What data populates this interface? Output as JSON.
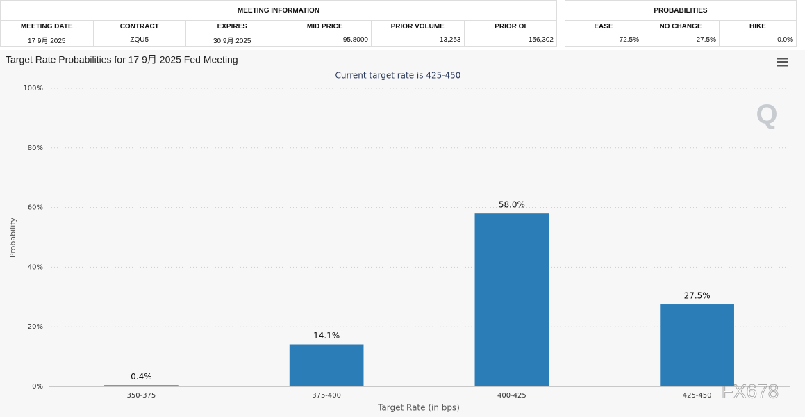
{
  "meeting_information": {
    "title": "MEETING INFORMATION",
    "columns": [
      "MEETING DATE",
      "CONTRACT",
      "EXPIRES",
      "MID PRICE",
      "PRIOR VOLUME",
      "PRIOR OI"
    ],
    "rows": [
      [
        "17 9月 2025",
        "ZQU5",
        "30 9月 2025",
        "95.8000",
        "13,253",
        "156,302"
      ]
    ]
  },
  "probabilities": {
    "title": "PROBABILITIES",
    "columns": [
      "EASE",
      "NO CHANGE",
      "HIKE"
    ],
    "rows": [
      [
        "72.5%",
        "27.5%",
        "0.0%"
      ]
    ]
  },
  "watermark": "FX678",
  "chart_data": {
    "type": "bar",
    "title": "Target Rate Probabilities for 17 9月 2025 Fed Meeting",
    "subtitle": "Current target rate is 425-450",
    "x_label": "Target Rate (in bps)",
    "y_label": "Probability",
    "categories": [
      "350-375",
      "375-400",
      "400-425",
      "425-450"
    ],
    "values": [
      0.4,
      14.1,
      58.0,
      27.5
    ],
    "value_labels": [
      "0.4%",
      "14.1%",
      "58.0%",
      "27.5%"
    ],
    "color": "#2b7db8",
    "ylim": [
      0,
      100
    ],
    "yticks": [
      {
        "value": 0,
        "label": "0%"
      },
      {
        "value": 20,
        "label": "20%"
      },
      {
        "value": 40,
        "label": "40%"
      },
      {
        "value": 60,
        "label": "60%"
      },
      {
        "value": 80,
        "label": "80%"
      },
      {
        "value": 100,
        "label": "100%"
      }
    ],
    "grid": true
  }
}
